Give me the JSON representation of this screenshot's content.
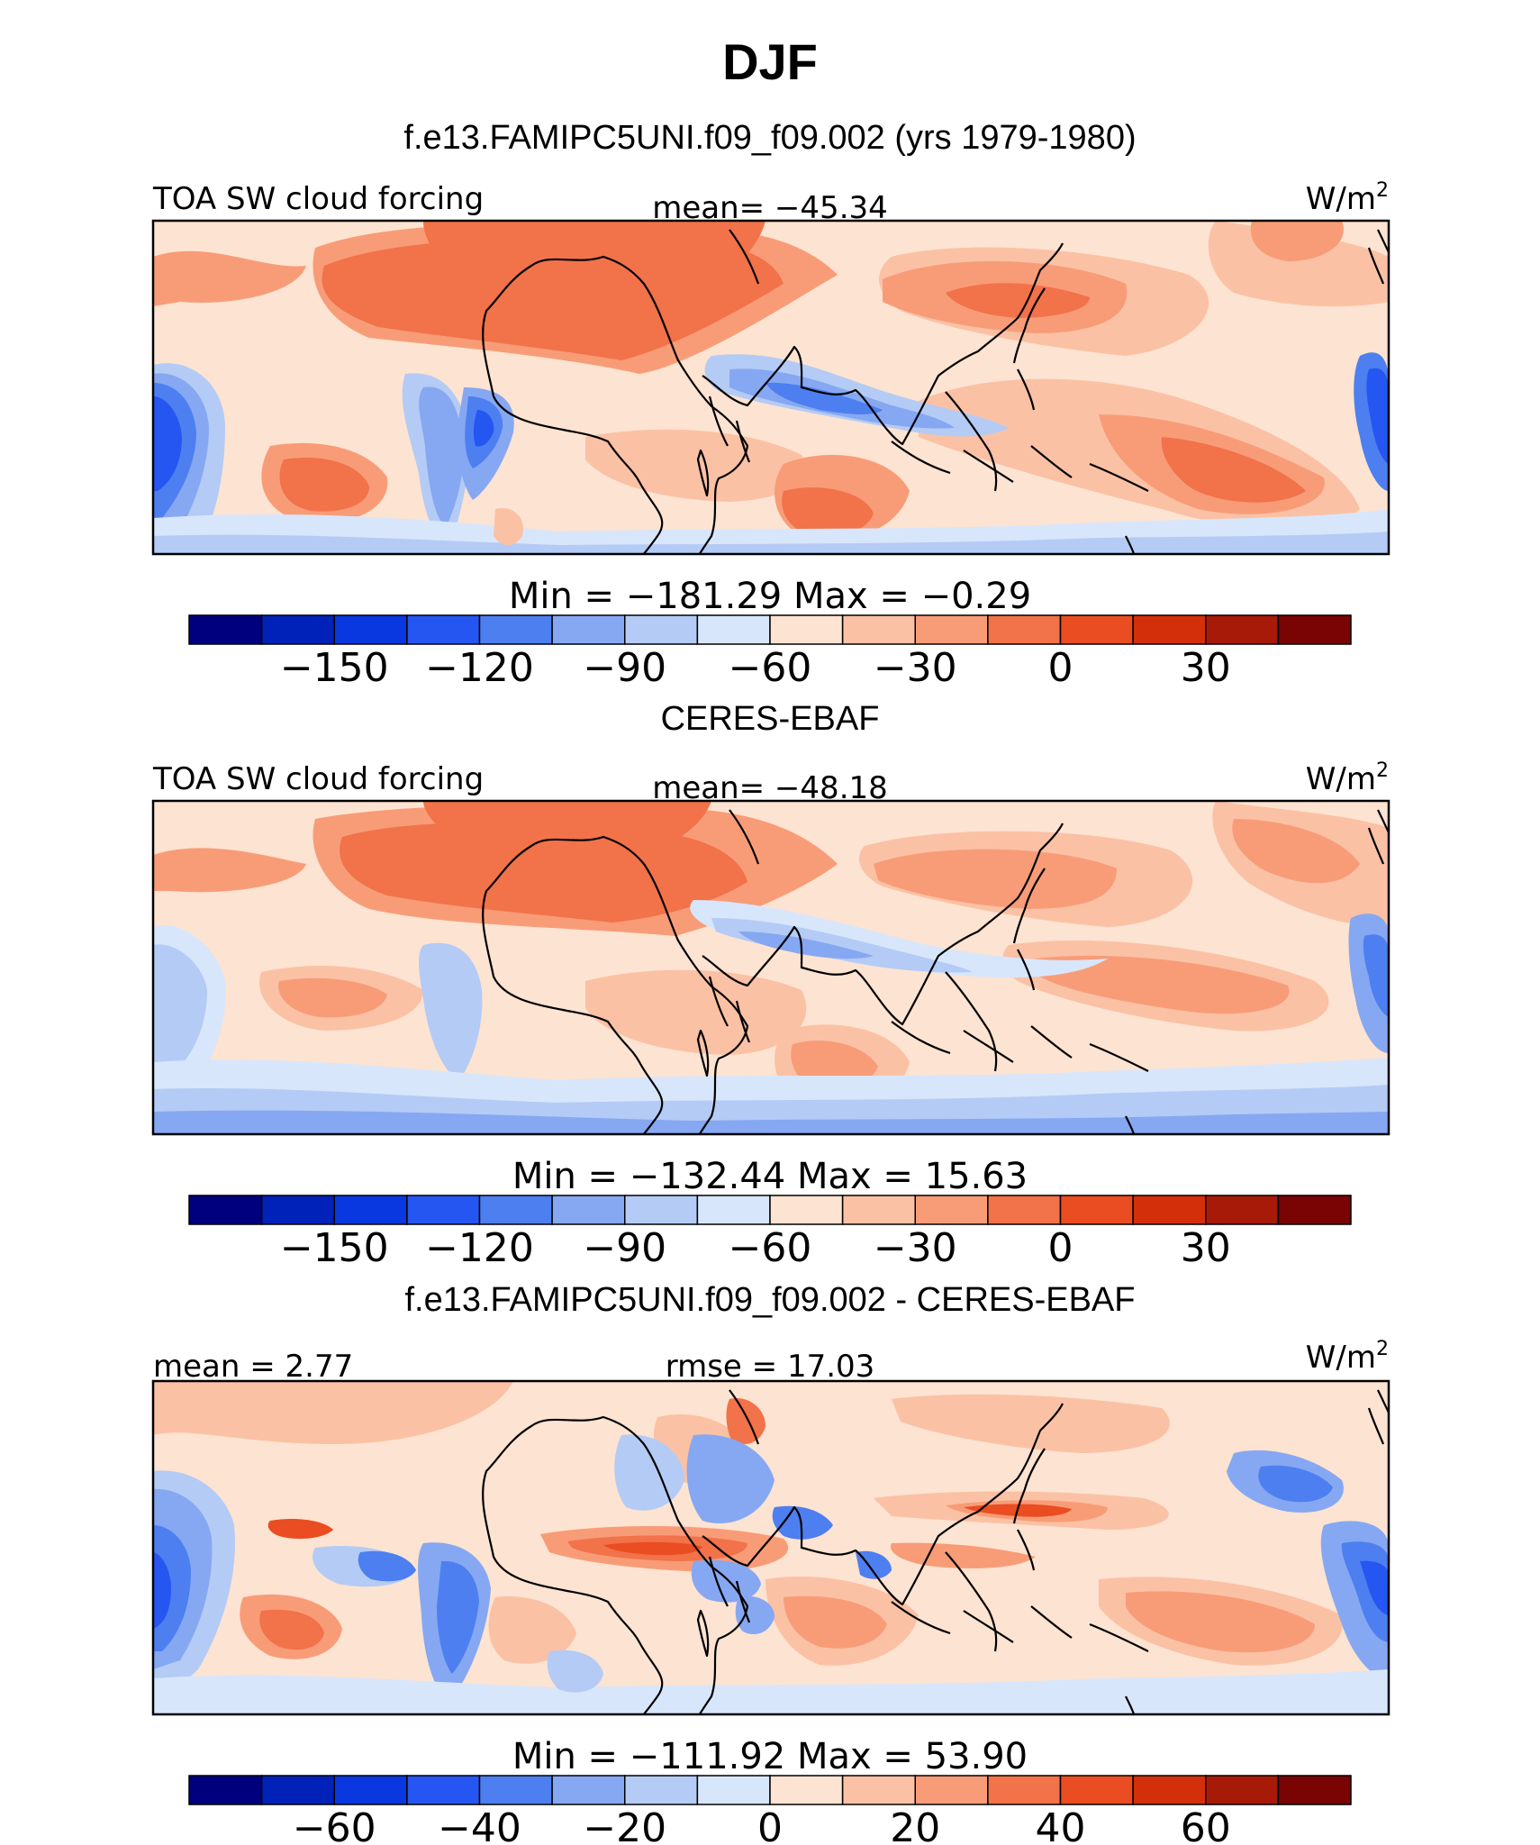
{
  "figure": {
    "season": "DJF",
    "case_title": "f.e13.FAMIPC5UNI.f09_f09.002 (yrs 1979-1980)",
    "obs_title": "CERES-EBAF",
    "diff_title": "f.e13.FAMIPC5UNI.f09_f09.002 - CERES-EBAF"
  },
  "panels": [
    {
      "id": "model",
      "left_label": "TOA SW cloud forcing",
      "center_label": "mean= −45.34",
      "units": "W/m",
      "units_sup": "2",
      "minmax": "Min = −181.29 Max = −0.29",
      "colorbar_ticks": [
        "−150",
        "−120",
        "−90",
        "−60",
        "−30",
        "0",
        "30"
      ]
    },
    {
      "id": "obs",
      "left_label": "TOA SW cloud forcing",
      "center_label": "mean= −48.18",
      "units": "W/m",
      "units_sup": "2",
      "minmax": "Min = −132.44 Max = 15.63",
      "colorbar_ticks": [
        "−150",
        "−120",
        "−90",
        "−60",
        "−30",
        "0",
        "30"
      ]
    },
    {
      "id": "diff",
      "left_label": "mean = 2.77",
      "center_label": "rmse = 17.03",
      "units": "W/m",
      "units_sup": "2",
      "minmax": "Min = −111.92 Max = 53.90",
      "colorbar_ticks": [
        "−60",
        "−40",
        "−20",
        "0",
        "20",
        "40",
        "60"
      ]
    }
  ],
  "colorbar_colors": [
    "#00007f",
    "#0022b8",
    "#0938e0",
    "#2556f2",
    "#4d7ff0",
    "#86a8f2",
    "#b4cbf5",
    "#d8e6fb",
    "#fde3d1",
    "#fbc1a5",
    "#f89c78",
    "#f2724a",
    "#ea4d21",
    "#d42f0b",
    "#a81a08",
    "#7a0404"
  ],
  "map_colors": {
    "ocean": "#fde3d1",
    "light_red": "#fbc1a5",
    "mid_red": "#f89c78",
    "strong_red": "#f2724a",
    "deep_red": "#ea4d21",
    "pale_blue": "#d8e6fb",
    "light_blue": "#b4cbf5",
    "mid_blue": "#86a8f2",
    "strong_blue": "#4d7ff0",
    "deep_blue": "#2556f2"
  }
}
